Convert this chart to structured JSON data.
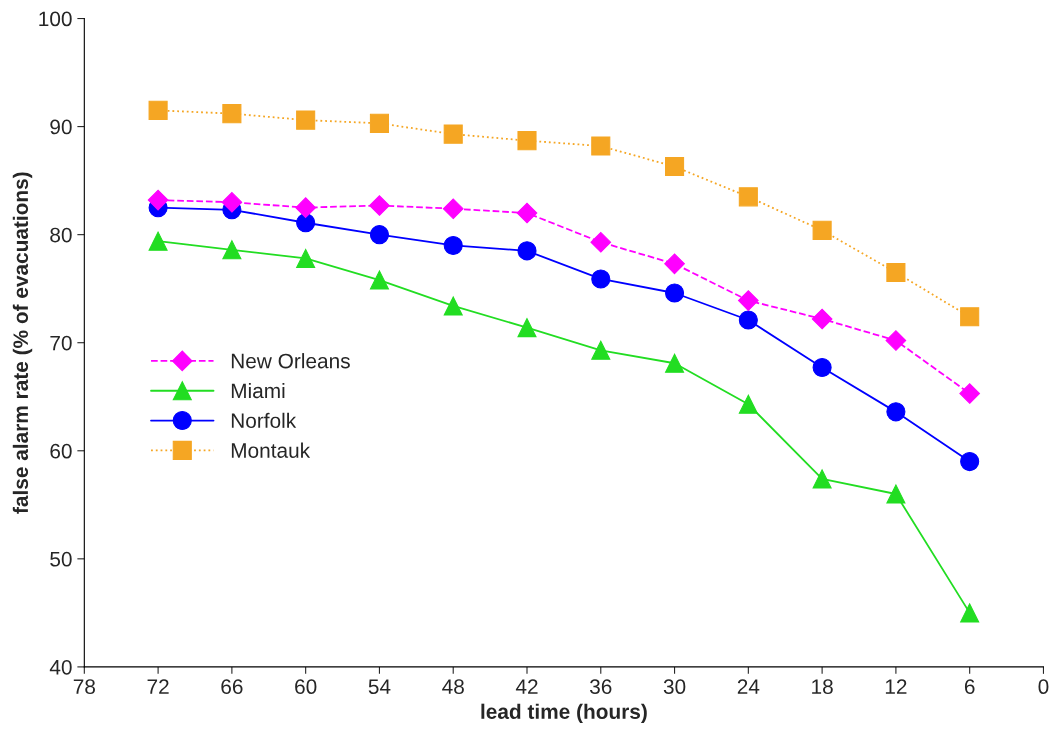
{
  "chart_data": {
    "type": "line",
    "xlabel": "lead time (hours)",
    "ylabel": "false alarm rate (% of evacuations)",
    "x": [
      72,
      66,
      60,
      54,
      48,
      42,
      36,
      30,
      24,
      18,
      12,
      6
    ],
    "xlim": [
      78,
      0
    ],
    "xticks": [
      78,
      72,
      66,
      60,
      54,
      48,
      42,
      36,
      30,
      24,
      18,
      12,
      6,
      0
    ],
    "ylim": [
      40,
      100
    ],
    "yticks": [
      40,
      50,
      60,
      70,
      80,
      90,
      100
    ],
    "grid": false,
    "legend": "center left",
    "series": [
      {
        "name": "New Orleans",
        "color": "#ff00ff",
        "marker": "diamond",
        "line_style": "dashed",
        "values": [
          83.2,
          83.0,
          82.5,
          82.7,
          82.4,
          82.0,
          79.3,
          77.3,
          73.9,
          72.2,
          70.2,
          65.3
        ]
      },
      {
        "name": "Miami",
        "color": "#22dd22",
        "marker": "triangle",
        "line_style": "solid",
        "values": [
          79.4,
          78.6,
          77.8,
          75.8,
          73.4,
          71.4,
          69.3,
          68.1,
          64.3,
          57.4,
          56.0,
          45.0
        ]
      },
      {
        "name": "Norfolk",
        "color": "#0000ff",
        "marker": "circle",
        "line_style": "solid",
        "values": [
          82.5,
          82.3,
          81.1,
          80.0,
          79.0,
          78.5,
          75.9,
          74.6,
          72.1,
          67.7,
          63.6,
          59.0
        ]
      },
      {
        "name": "Montauk",
        "color": "#f5a623",
        "marker": "square",
        "line_style": "dotted",
        "values": [
          91.5,
          91.2,
          90.6,
          90.3,
          89.3,
          88.7,
          88.2,
          86.3,
          83.5,
          80.4,
          76.5,
          72.4
        ]
      }
    ]
  }
}
